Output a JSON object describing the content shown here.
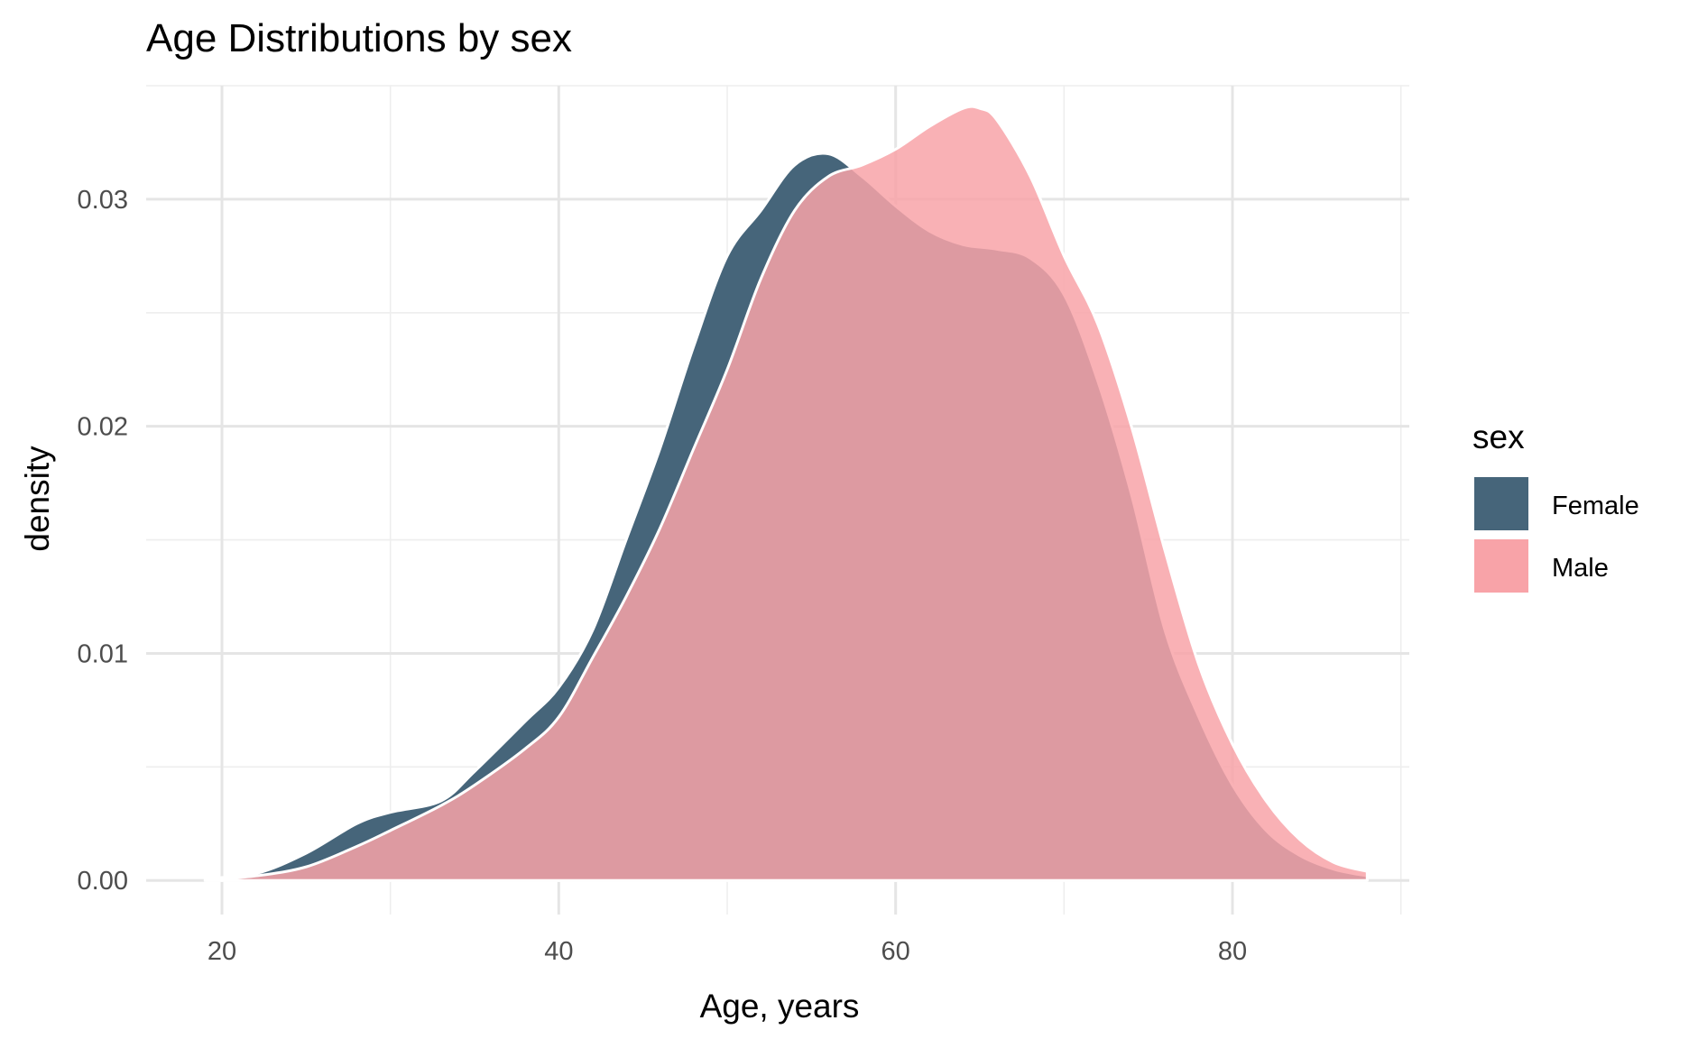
{
  "chart_data": {
    "type": "area",
    "subtype": "density",
    "title": "Age Distributions by sex",
    "xlabel": "Age, years",
    "ylabel": "density",
    "xlim": [
      15.5,
      90.5
    ],
    "ylim": [
      -0.0015,
      0.035
    ],
    "x_ticks": [
      20,
      40,
      60,
      80
    ],
    "x_tick_labels": [
      "20",
      "40",
      "60",
      "80"
    ],
    "y_ticks": [
      0,
      0.01,
      0.02,
      0.03
    ],
    "y_tick_labels": [
      "0.00",
      "0.01",
      "0.02",
      "0.03"
    ],
    "grid": true,
    "legend": {
      "title": "sex",
      "position": "right"
    },
    "series": [
      {
        "name": "Female",
        "color": "#46657a",
        "x": [
          19,
          22,
          25,
          28,
          30,
          33,
          35,
          38,
          40,
          42,
          44,
          46,
          48,
          50,
          52,
          54,
          56,
          58,
          60,
          62,
          64,
          66,
          68,
          70,
          72,
          74,
          76,
          78,
          80,
          82,
          84,
          86,
          88
        ],
        "y": [
          0.0001,
          0.0003,
          0.0012,
          0.0025,
          0.003,
          0.0035,
          0.0048,
          0.007,
          0.0085,
          0.011,
          0.015,
          0.019,
          0.0235,
          0.0275,
          0.0295,
          0.0315,
          0.032,
          0.031,
          0.0297,
          0.0286,
          0.028,
          0.0278,
          0.0274,
          0.0258,
          0.022,
          0.017,
          0.011,
          0.0072,
          0.0042,
          0.0022,
          0.0011,
          0.0005,
          0.0002
        ]
      },
      {
        "name": "Male",
        "color": "#f8a3a8",
        "x": [
          19,
          22,
          25,
          28,
          30,
          33,
          35,
          38,
          40,
          42,
          44,
          46,
          48,
          50,
          52,
          54,
          56,
          58,
          60,
          62,
          64,
          65,
          66,
          68,
          70,
          72,
          74,
          76,
          78,
          80,
          82,
          84,
          86,
          88
        ],
        "y": [
          0,
          0.0002,
          0.0006,
          0.0015,
          0.0022,
          0.0033,
          0.0042,
          0.0058,
          0.0072,
          0.0098,
          0.0125,
          0.0155,
          0.019,
          0.0225,
          0.0265,
          0.0295,
          0.031,
          0.0315,
          0.0322,
          0.0332,
          0.034,
          0.034,
          0.0335,
          0.031,
          0.0275,
          0.0245,
          0.02,
          0.0145,
          0.0095,
          0.006,
          0.0035,
          0.0018,
          0.0008,
          0.0004
        ]
      }
    ]
  }
}
